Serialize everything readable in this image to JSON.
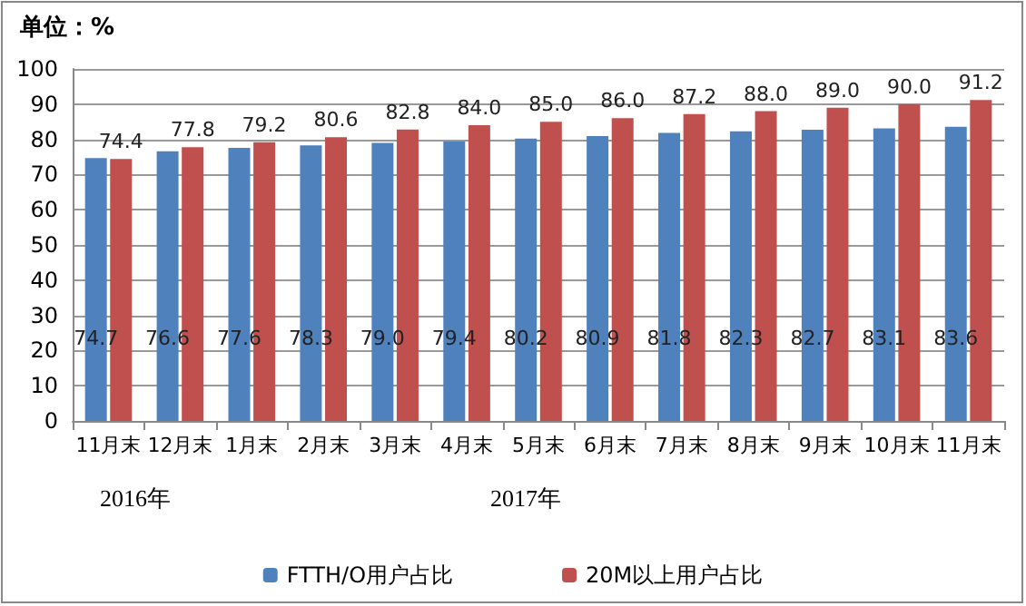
{
  "chart_data": {
    "type": "bar",
    "ylabel": "单位：%",
    "categories": [
      "11月末",
      "12月末",
      "1月末",
      "2月末",
      "3月末",
      "4月末",
      "5月末",
      "6月末",
      "7月末",
      "8月末",
      "9月末",
      "10月末",
      "11月末"
    ],
    "series": [
      {
        "name": "FTTH/O用户占比",
        "color": "#4f81bd",
        "values": [
          74.7,
          76.6,
          77.6,
          78.3,
          79.0,
          79.4,
          80.2,
          80.9,
          81.8,
          82.3,
          82.7,
          83.1,
          83.6
        ],
        "value_labels": [
          "74.7",
          "76.6",
          "77.6",
          "78.3",
          "79.0",
          "79.4",
          "80.2",
          "80.9",
          "81.8",
          "82.3",
          "82.7",
          "83.1",
          "83.6"
        ]
      },
      {
        "name": "20M以上用户占比",
        "color": "#c0504d",
        "values": [
          74.4,
          77.8,
          79.2,
          80.6,
          82.8,
          84.0,
          85.0,
          86.0,
          87.2,
          88.0,
          89.0,
          90.0,
          91.2
        ],
        "value_labels": [
          "74.4",
          "77.8",
          "79.2",
          "80.6",
          "82.8",
          "84.0",
          "85.0",
          "86.0",
          "87.2",
          "88.0",
          "89.0",
          "90.0",
          "91.2"
        ]
      }
    ],
    "ylim": [
      0,
      100
    ],
    "yticks": [
      0,
      10,
      20,
      30,
      40,
      50,
      60,
      70,
      80,
      90,
      100
    ],
    "grid": "y",
    "legend": "bottom",
    "annotations": [
      "2016年",
      "2017年"
    ]
  }
}
